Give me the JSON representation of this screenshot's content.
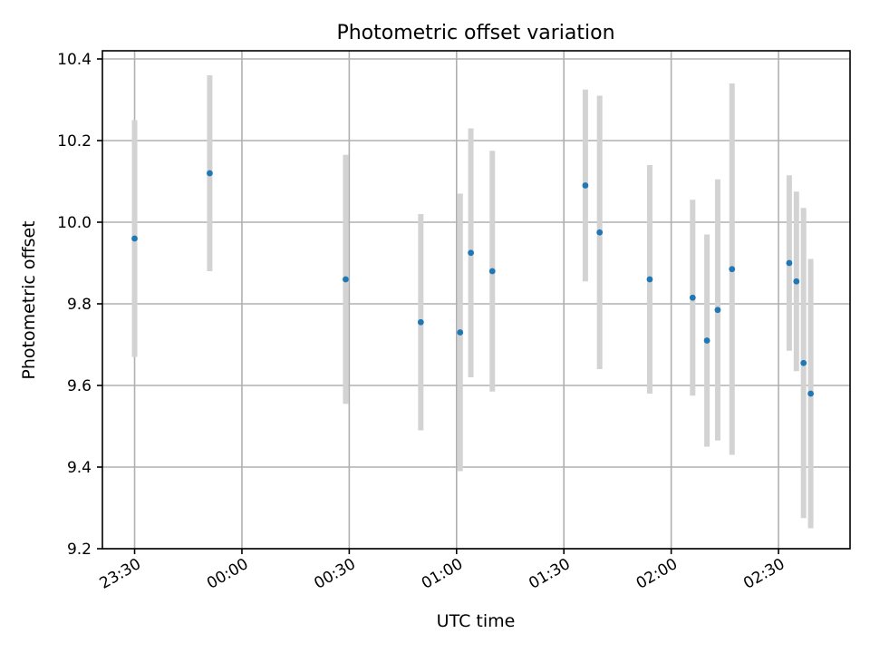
{
  "chart_data": {
    "type": "scatter",
    "title": "Photometric offset variation",
    "xlabel": "UTC time",
    "ylabel": "Photometric offset",
    "grid": true,
    "x_tick_labels": [
      "23:30",
      "00:00",
      "00:30",
      "01:00",
      "01:30",
      "02:00",
      "02:30"
    ],
    "y_ticks": [
      9.2,
      9.4,
      9.6,
      9.8,
      10.0,
      10.2,
      10.4
    ],
    "y_tick_labels": [
      "9.2",
      "9.4",
      "9.6",
      "9.8",
      "10.0",
      "10.2",
      "10.4"
    ],
    "xlim": [
      "23:21",
      "02:50"
    ],
    "ylim": [
      9.2,
      10.42
    ],
    "marker_color": "#1f77b4",
    "errorbar_color": "#d3d3d3",
    "series": [
      {
        "x": [
          "23:30",
          "23:51",
          "00:29",
          "00:50",
          "01:01",
          "01:04",
          "01:10",
          "01:36",
          "01:40",
          "01:54",
          "02:06",
          "02:10",
          "02:13",
          "02:17",
          "02:33",
          "02:35",
          "02:37",
          "02:39"
        ],
        "y": [
          9.96,
          10.12,
          9.86,
          9.755,
          9.73,
          9.925,
          9.88,
          10.09,
          9.975,
          9.86,
          9.815,
          9.71,
          9.785,
          9.885,
          9.9,
          9.855,
          9.655,
          9.58
        ],
        "yerr": [
          0.29,
          0.24,
          0.305,
          0.265,
          0.34,
          0.305,
          0.295,
          0.235,
          0.335,
          0.28,
          0.24,
          0.26,
          0.32,
          0.455,
          0.215,
          0.22,
          0.38,
          0.33
        ]
      }
    ]
  }
}
